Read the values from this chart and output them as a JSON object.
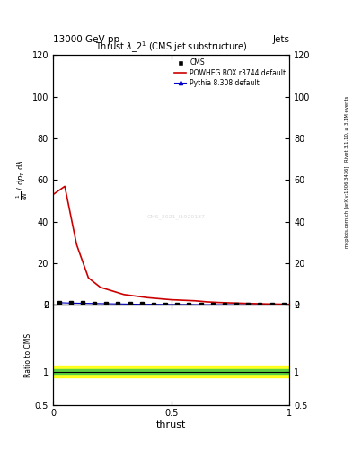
{
  "title": "Thrust $\\lambda\\_2^1$ (CMS jet substructure)",
  "header_left": "13000 GeV pp",
  "header_right": "Jets",
  "right_label_top": "Rivet 3.1.10, ≥ 3.1M events",
  "right_label_bottom": "mcplots.cern.ch [arXiv:1306.3436]",
  "watermark": "CMS_2021_I1920187",
  "xlabel": "thrust",
  "ylabel_main": "$\\frac{1}{\\mathrm{d}N}$ / $\\mathrm{d}p_T$ $\\mathrm{d}\\lambda$",
  "ylabel_ratio": "Ratio to CMS",
  "ylim_main": [
    0,
    120
  ],
  "ylim_ratio": [
    0.5,
    2.0
  ],
  "yticks_main": [
    0,
    20,
    40,
    60,
    80,
    100,
    120
  ],
  "xlim": [
    0,
    1
  ],
  "xticks": [
    0,
    0.5,
    1.0
  ],
  "cms_x": [
    0.025,
    0.075,
    0.125,
    0.175,
    0.225,
    0.275,
    0.325,
    0.375,
    0.425,
    0.475,
    0.525,
    0.575,
    0.625,
    0.675,
    0.725,
    0.775,
    0.825,
    0.875,
    0.925,
    0.975
  ],
  "cms_y": [
    1.2,
    1.0,
    0.9,
    0.8,
    0.7,
    0.6,
    0.5,
    0.4,
    0.3,
    0.3,
    0.2,
    0.2,
    0.2,
    0.2,
    0.1,
    0.1,
    0.1,
    0.1,
    0.1,
    0.1
  ],
  "powheg_x": [
    0.0,
    0.05,
    0.1,
    0.15,
    0.2,
    0.3,
    0.4,
    0.5,
    0.6,
    0.65,
    0.7,
    0.8,
    0.9,
    1.0
  ],
  "powheg_y": [
    53.0,
    57.0,
    29.0,
    13.0,
    8.5,
    5.0,
    3.5,
    2.5,
    2.0,
    1.5,
    1.2,
    0.8,
    0.5,
    0.3
  ],
  "pythia_x": [
    0.025,
    0.075,
    0.125,
    0.175,
    0.225,
    0.275,
    0.325,
    0.375,
    0.425,
    0.475,
    0.525,
    0.575,
    0.625,
    0.675,
    0.725,
    0.775,
    0.825,
    0.875,
    0.925,
    0.975
  ],
  "pythia_y": [
    1.1,
    0.9,
    0.8,
    0.7,
    0.6,
    0.5,
    0.4,
    0.3,
    0.3,
    0.2,
    0.2,
    0.2,
    0.1,
    0.1,
    0.1,
    0.1,
    0.1,
    0.1,
    0.1,
    0.1
  ],
  "ratio_band_yellow_lo": 0.91,
  "ratio_band_yellow_hi": 1.09,
  "ratio_band_green_lo": 0.965,
  "ratio_band_green_hi": 1.035,
  "cms_color": "black",
  "powheg_color": "#cc0000",
  "pythia_color": "#0000cc",
  "bg_color": "white"
}
